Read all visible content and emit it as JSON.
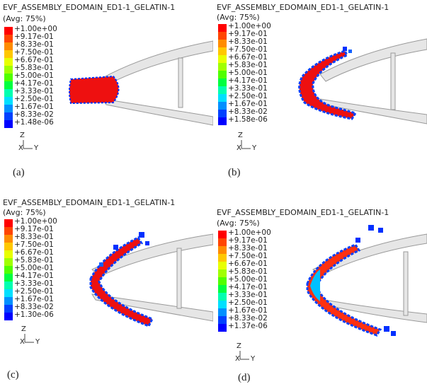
{
  "panels": [
    {
      "title": "EVF_ASSEMBLY_EDOMAIN_ED1-1_GELATIN-1",
      "avg": "(Avg: 75%)",
      "legend": [
        "+1.00e+00",
        "+9.17e-01",
        "+8.33e-01",
        "+7.50e-01",
        "+6.67e-01",
        "+5.83e-01",
        "+5.00e-01",
        "+4.17e-01",
        "+3.33e-01",
        "+2.50e-01",
        "+1.67e-01",
        "+8.33e-02",
        "+1.48e-06"
      ],
      "axis": {
        "z": "Z",
        "x": "X",
        "y": "Y"
      },
      "label": "(a)"
    },
    {
      "title": "EVF_ASSEMBLY_EDOMAIN_ED1-1_GELATIN-1",
      "avg": "(Avg: 75%)",
      "legend": [
        "+1.00e+00",
        "+9.17e-01",
        "+8.33e-01",
        "+7.50e-01",
        "+6.67e-01",
        "+5.83e-01",
        "+5.00e-01",
        "+4.17e-01",
        "+3.33e-01",
        "+2.50e-01",
        "+1.67e-01",
        "+8.33e-02",
        "+1.58e-06"
      ],
      "axis": {
        "z": "Z",
        "x": "X",
        "y": "Y"
      },
      "label": "(b)"
    },
    {
      "title": "EVF_ASSEMBLY_EDOMAIN_ED1-1_GELATIN-1",
      "avg": "(Avg: 75%)",
      "legend": [
        "+1.00e+00",
        "+9.17e-01",
        "+8.33e-01",
        "+7.50e-01",
        "+6.67e-01",
        "+5.83e-01",
        "+5.00e-01",
        "+4.17e-01",
        "+3.33e-01",
        "+2.50e-01",
        "+1.67e-01",
        "+8.33e-02",
        "+1.30e-06"
      ],
      "axis": {
        "z": "Z",
        "x": "X",
        "y": "Y"
      },
      "label": "(c)"
    },
    {
      "title": "EVF_ASSEMBLY_EDOMAIN_ED1-1_GELATIN-1",
      "avg": "(Avg: 75%)",
      "legend": [
        "+1.00e+00",
        "+9.17e-01",
        "+8.33e-01",
        "+7.50e-01",
        "+6.67e-01",
        "+5.83e-01",
        "+5.00e-01",
        "+4.17e-01",
        "+3.33e-01",
        "+2.50e-01",
        "+1.67e-01",
        "+8.33e-02",
        "+1.37e-06"
      ],
      "axis": {
        "z": "Z",
        "x": "X",
        "y": "Y"
      },
      "label": "(d)"
    }
  ],
  "legend_colors": [
    "#ff0000",
    "#ff4500",
    "#ff8c00",
    "#ffc800",
    "#e8ff00",
    "#a0ff00",
    "#50ff00",
    "#00ff40",
    "#00ffb0",
    "#00e0ff",
    "#0090ff",
    "#0040ff",
    "#0000ff"
  ]
}
